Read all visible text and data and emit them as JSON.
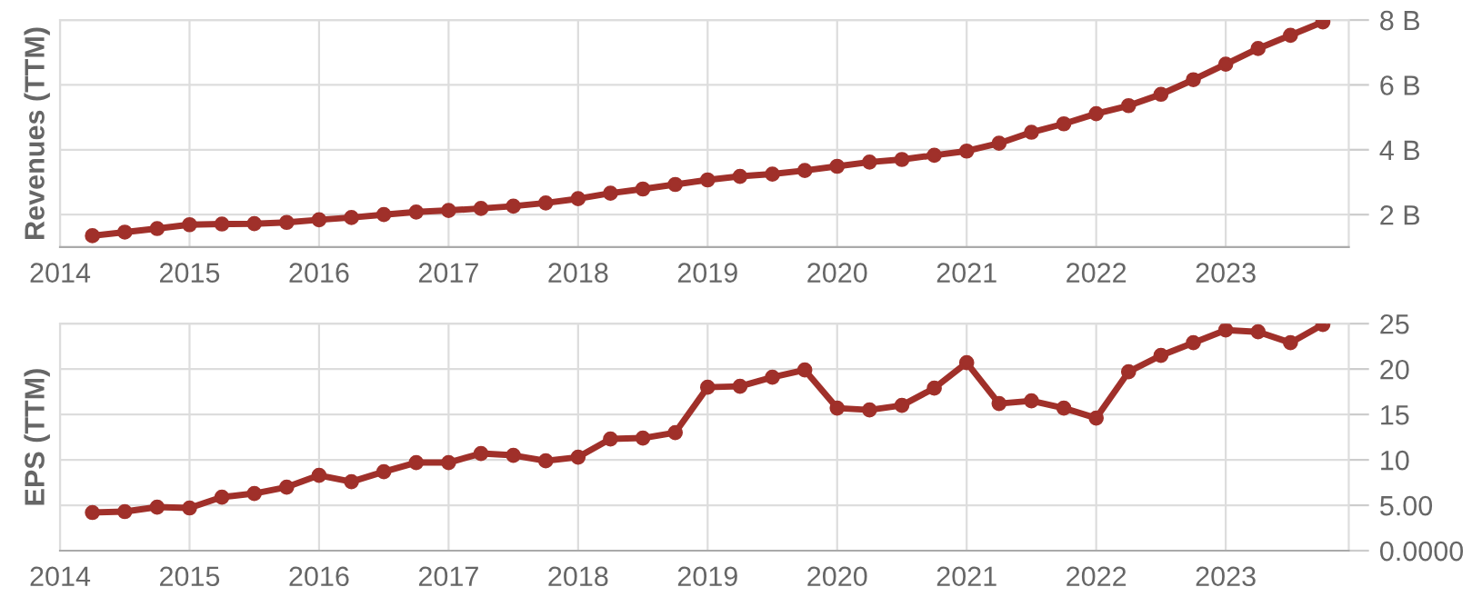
{
  "chart_data": [
    {
      "type": "line",
      "ylabel": "Revenues (TTM)",
      "x": [
        2014.25,
        2014.5,
        2014.75,
        2015,
        2015.25,
        2015.5,
        2015.75,
        2016,
        2016.25,
        2016.5,
        2016.75,
        2017,
        2017.25,
        2017.5,
        2017.75,
        2018,
        2018.25,
        2018.5,
        2018.75,
        2019,
        2019.25,
        2019.5,
        2019.75,
        2020,
        2020.25,
        2020.5,
        2020.75,
        2021,
        2021.25,
        2021.5,
        2021.75,
        2022,
        2022.25,
        2022.5,
        2022.75,
        2023,
        2023.25,
        2023.5,
        2023.75
      ],
      "series": [
        {
          "color": "#a0302a",
          "values": [
            1.35,
            1.46,
            1.57,
            1.69,
            1.71,
            1.72,
            1.76,
            1.84,
            1.91,
            2.0,
            2.08,
            2.13,
            2.19,
            2.26,
            2.36,
            2.49,
            2.66,
            2.79,
            2.93,
            3.07,
            3.18,
            3.25,
            3.36,
            3.49,
            3.62,
            3.7,
            3.83,
            3.96,
            4.2,
            4.54,
            4.8,
            5.11,
            5.36,
            5.71,
            6.16,
            6.64,
            7.12,
            7.53,
            7.94
          ]
        }
      ],
      "xlim": [
        2014,
        2023.95
      ],
      "xticks": [
        2014,
        2015,
        2016,
        2017,
        2018,
        2019,
        2020,
        2021,
        2022,
        2023
      ],
      "ylim": [
        1,
        8
      ],
      "yticks": [
        {
          "value": 2,
          "label": "2 B"
        },
        {
          "value": 4,
          "label": "4 B"
        },
        {
          "value": 6,
          "label": "6 B"
        },
        {
          "value": 8,
          "label": "8 B"
        }
      ],
      "grid": true,
      "marker": "circle",
      "line_style": "solid",
      "legend": false
    },
    {
      "type": "line",
      "ylabel": "EPS (TTM)",
      "x": [
        2014.25,
        2014.5,
        2014.75,
        2015,
        2015.25,
        2015.5,
        2015.75,
        2016,
        2016.25,
        2016.5,
        2016.75,
        2017,
        2017.25,
        2017.5,
        2017.75,
        2018,
        2018.25,
        2018.5,
        2018.75,
        2019,
        2019.25,
        2019.5,
        2019.75,
        2020,
        2020.25,
        2020.5,
        2020.75,
        2021,
        2021.25,
        2021.5,
        2021.75,
        2022,
        2022.25,
        2022.5,
        2022.75,
        2023,
        2023.25,
        2023.5,
        2023.75
      ],
      "series": [
        {
          "color": "#a0302a",
          "values": [
            4.2,
            4.3,
            4.8,
            4.7,
            5.9,
            6.3,
            7.0,
            8.3,
            7.6,
            8.7,
            9.7,
            9.7,
            10.7,
            10.5,
            9.9,
            10.3,
            12.3,
            12.4,
            13.0,
            18.0,
            18.1,
            19.1,
            19.9,
            15.7,
            15.5,
            16.0,
            17.9,
            20.7,
            16.2,
            16.5,
            15.7,
            14.6,
            19.7,
            21.5,
            22.9,
            24.3,
            24.1,
            22.9,
            24.9
          ]
        }
      ],
      "xlim": [
        2014,
        2023.95
      ],
      "xticks": [
        2014,
        2015,
        2016,
        2017,
        2018,
        2019,
        2020,
        2021,
        2022,
        2023
      ],
      "ylim": [
        0,
        25
      ],
      "yticks": [
        {
          "value": 0,
          "label": "0.0000"
        },
        {
          "value": 5,
          "label": "5.00"
        },
        10,
        15,
        20,
        25
      ],
      "grid": true,
      "marker": "circle",
      "line_style": "solid",
      "legend": false
    }
  ]
}
